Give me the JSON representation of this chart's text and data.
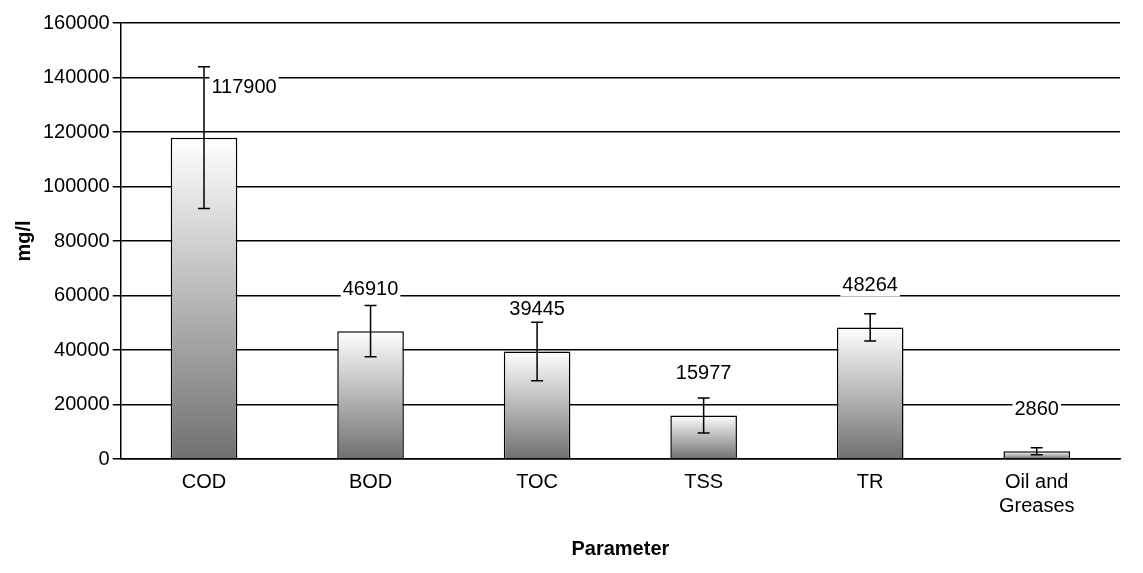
{
  "chart_data": {
    "type": "bar",
    "xlabel": "Parameter",
    "ylabel": "mg/l",
    "categories": [
      "COD",
      "BOD",
      "TOC",
      "TSS",
      "TR",
      "Oil and Greases"
    ],
    "values": [
      117900,
      46910,
      39445,
      15977,
      48264,
      2860
    ],
    "errors": [
      26000,
      9400,
      10700,
      6400,
      5000,
      1300
    ],
    "color": "#707070",
    "ylim": [
      0,
      160000
    ],
    "yticks": [
      0,
      20000,
      40000,
      60000,
      80000,
      100000,
      120000,
      140000,
      160000
    ],
    "grid": "y",
    "data_labels": true
  }
}
